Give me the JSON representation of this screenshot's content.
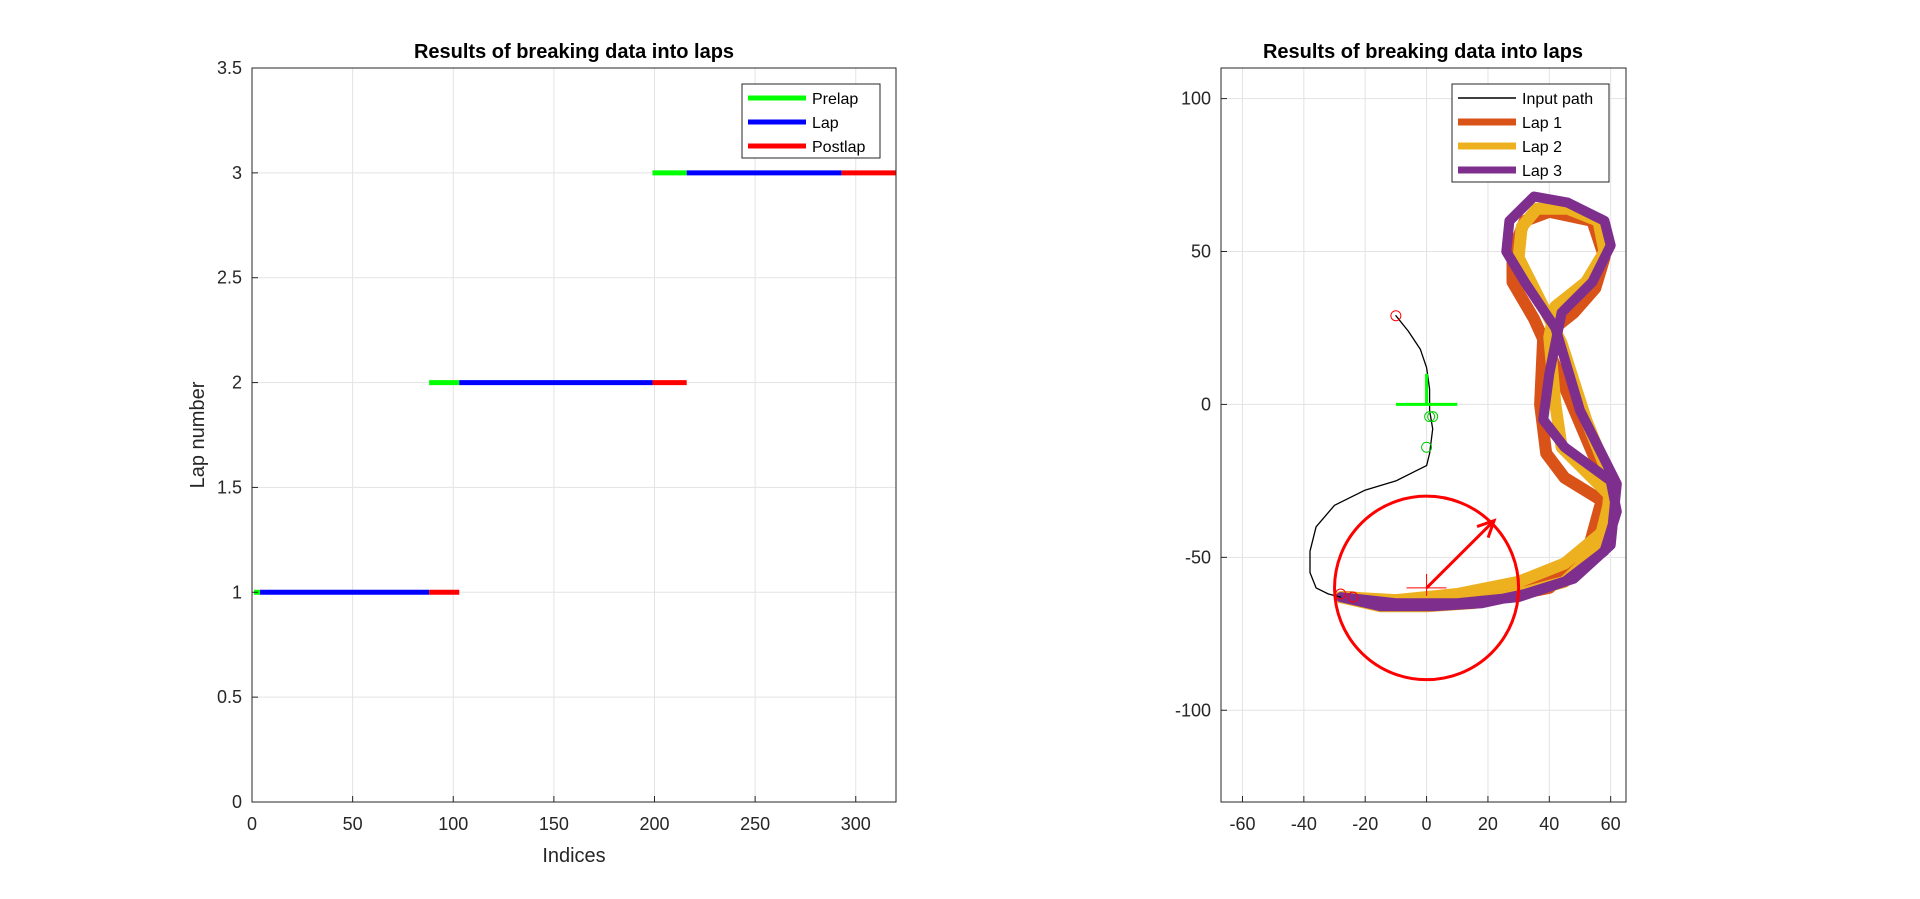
{
  "chart_data": [
    {
      "type": "line",
      "title": "Results of breaking data into laps",
      "xlabel": "Indices",
      "ylabel": "Lap number",
      "xlim": [
        0,
        320
      ],
      "ylim": [
        0,
        3.5
      ],
      "xticks": [
        "0",
        "50",
        "100",
        "150",
        "200",
        "250",
        "300"
      ],
      "yticks": [
        "0",
        "0.5",
        "1",
        "1.5",
        "2",
        "2.5",
        "3",
        "3.5"
      ],
      "grid": true,
      "legend_location": "top-right",
      "legend": [
        {
          "name": "Prelap",
          "color": "#00ff00"
        },
        {
          "name": "Lap",
          "color": "#0000ff"
        },
        {
          "name": "Postlap",
          "color": "#ff0000"
        }
      ],
      "segments": [
        {
          "lap": 1,
          "kind": "Prelap",
          "x": [
            1,
            4
          ]
        },
        {
          "lap": 1,
          "kind": "Lap",
          "x": [
            4,
            88
          ]
        },
        {
          "lap": 1,
          "kind": "Postlap",
          "x": [
            88,
            103
          ]
        },
        {
          "lap": 2,
          "kind": "Prelap",
          "x": [
            88,
            103
          ]
        },
        {
          "lap": 2,
          "kind": "Lap",
          "x": [
            103,
            199
          ]
        },
        {
          "lap": 2,
          "kind": "Postlap",
          "x": [
            199,
            216
          ]
        },
        {
          "lap": 3,
          "kind": "Prelap",
          "x": [
            199,
            216
          ]
        },
        {
          "lap": 3,
          "kind": "Lap",
          "x": [
            216,
            293
          ]
        },
        {
          "lap": 3,
          "kind": "Postlap",
          "x": [
            293,
            320
          ]
        }
      ]
    },
    {
      "type": "line",
      "title": "Results of breaking data into laps",
      "xlabel": "",
      "ylabel": "",
      "xlim": [
        -67,
        65
      ],
      "ylim": [
        -130,
        110
      ],
      "xticks": [
        "-60",
        "-40",
        "-20",
        "0",
        "20",
        "40",
        "60"
      ],
      "yticks": [
        "-100",
        "-50",
        "0",
        "50",
        "100"
      ],
      "grid": true,
      "legend_location": "top-right",
      "legend": [
        {
          "name": "Input path",
          "color": "#000000"
        },
        {
          "name": "Lap 1",
          "color": "#d95319"
        },
        {
          "name": "Lap 2",
          "color": "#edb120"
        },
        {
          "name": "Lap 3",
          "color": "#7e2f8e"
        }
      ],
      "series": [
        {
          "name": "Lap 1",
          "color": "#d95319",
          "x": [
            -28,
            -15,
            0,
            20,
            38,
            50,
            58,
            58,
            45,
            39,
            37,
            38,
            48,
            55,
            58,
            54,
            40,
            32,
            28,
            28,
            35,
            44,
            55,
            58,
            52,
            40,
            30,
            20,
            10,
            0,
            -10,
            -25,
            -28
          ],
          "y": [
            -63,
            -64,
            -64,
            -62,
            -58,
            -54,
            -45,
            -32,
            -24,
            -16,
            0,
            22,
            30,
            38,
            48,
            60,
            63,
            60,
            50,
            40,
            28,
            8,
            -18,
            -28,
            -50,
            -60,
            -62,
            -64,
            -65,
            -65,
            -65,
            -63,
            -63
          ]
        },
        {
          "name": "Lap 2",
          "color": "#edb120",
          "x": [
            -28,
            -10,
            10,
            30,
            45,
            57,
            60,
            52,
            44,
            42,
            40,
            42,
            52,
            58,
            56,
            46,
            36,
            31,
            30,
            35,
            44,
            52,
            60,
            58,
            45,
            30,
            15,
            0,
            -15,
            -28
          ],
          "y": [
            -63,
            -64,
            -62,
            -58,
            -52,
            -42,
            -30,
            -22,
            -14,
            0,
            22,
            32,
            40,
            50,
            60,
            64,
            64,
            58,
            48,
            38,
            20,
            -5,
            -25,
            -45,
            -58,
            -62,
            -65,
            -66,
            -66,
            -63
          ]
        },
        {
          "name": "Lap 3",
          "color": "#7e2f8e",
          "x": [
            -28,
            -10,
            10,
            30,
            45,
            58,
            62,
            60,
            45,
            38,
            40,
            44,
            54,
            60,
            58,
            46,
            35,
            27,
            26,
            32,
            42,
            50,
            62,
            60,
            48,
            32,
            18,
            2,
            -15,
            -28
          ],
          "y": [
            -63,
            -65,
            -65,
            -63,
            -58,
            -48,
            -35,
            -25,
            -14,
            -5,
            10,
            30,
            40,
            52,
            60,
            66,
            68,
            60,
            50,
            40,
            25,
            -2,
            -26,
            -46,
            -57,
            -62,
            -65,
            -66,
            -66,
            -63
          ]
        },
        {
          "name": "Input path",
          "color": "#000000",
          "x": [
            -10,
            -6,
            -2,
            0,
            1,
            1,
            2,
            1,
            0,
            -4,
            -10,
            -20,
            -30,
            -36,
            -38,
            -38,
            -36,
            -32,
            -28
          ],
          "y": [
            29,
            24,
            18,
            12,
            5,
            -2,
            -8,
            -16,
            -20,
            -22,
            -25,
            -28,
            -33,
            -40,
            -48,
            -55,
            -60,
            -62,
            -63
          ]
        }
      ],
      "markers": [
        {
          "kind": "red-circle",
          "x": -10,
          "y": 29
        },
        {
          "kind": "green-circle",
          "x": 1,
          "y": -4
        },
        {
          "kind": "green-circle",
          "x": 2,
          "y": -4
        },
        {
          "kind": "green-circle",
          "x": 0,
          "y": -14
        },
        {
          "kind": "red-circle",
          "x": -28,
          "y": -62
        },
        {
          "kind": "red-circle",
          "x": -24,
          "y": -63
        }
      ],
      "start_zone": {
        "center": [
          0,
          0
        ],
        "color": "#00ff00",
        "half_width": 10,
        "arrow_tip": [
          0,
          10
        ]
      },
      "end_zone": {
        "center": [
          0,
          -60
        ],
        "radius": 30,
        "color": "#ff0000",
        "arrow_tip": [
          22,
          -38
        ]
      }
    }
  ]
}
